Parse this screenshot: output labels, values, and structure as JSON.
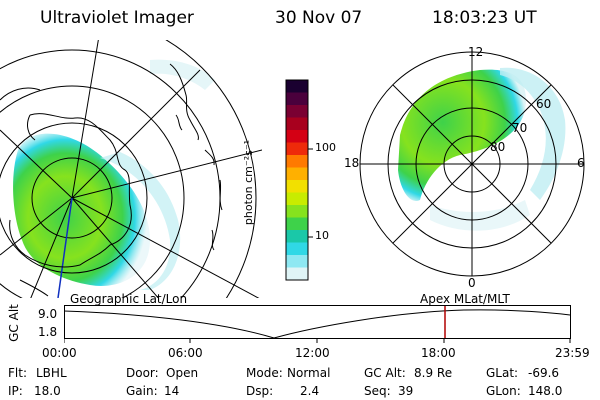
{
  "header": {
    "instrument": "Ultraviolet Imager",
    "date": "30 Nov 07",
    "time": "18:03:23 UT"
  },
  "left_map": {
    "caption": "Geographic Lat/Lon"
  },
  "right_map": {
    "caption": "Apex MLat/MLT",
    "mlt_labels": {
      "top": "12",
      "left": "18",
      "right": "6",
      "bottom": "0"
    },
    "lat_labels": [
      "60",
      "70",
      "80"
    ]
  },
  "colorbar": {
    "unit_label": "photon cm⁻²s⁻¹",
    "ticks": [
      "100",
      "10"
    ],
    "colors": [
      "#1a0030",
      "#4a003c",
      "#7a0032",
      "#a8001e",
      "#d40014",
      "#ee2a0a",
      "#ff7a00",
      "#ffb000",
      "#f2e000",
      "#c8ec00",
      "#86e21e",
      "#3ed24a",
      "#1ac8a8",
      "#30d8e6",
      "#8ee8f2",
      "#dff4f6"
    ]
  },
  "timeline": {
    "y_axis_label": "GC Alt",
    "y_ticks": [
      "9.0",
      "1.8"
    ],
    "x_ticks": [
      "00:00",
      "06:00",
      "12:00",
      "18:00",
      "23:59"
    ],
    "marker_color": "#b00000"
  },
  "status": {
    "row1": [
      {
        "key": "Flt:",
        "value": "LBHL"
      },
      {
        "key": "Door:",
        "value": "Open"
      },
      {
        "key": "Mode:",
        "value": "Normal"
      },
      {
        "key": "GC Alt:",
        "value": "8.9 Re"
      },
      {
        "key": "GLat:",
        "value": "-69.6"
      }
    ],
    "row2": [
      {
        "key": "IP:",
        "value": "18.0"
      },
      {
        "key": "Gain:",
        "value": "14"
      },
      {
        "key": "Dsp:",
        "value": "2.4"
      },
      {
        "key": "Seq:",
        "value": "39"
      },
      {
        "key": "GLon:",
        "value": "148.0"
      }
    ]
  }
}
